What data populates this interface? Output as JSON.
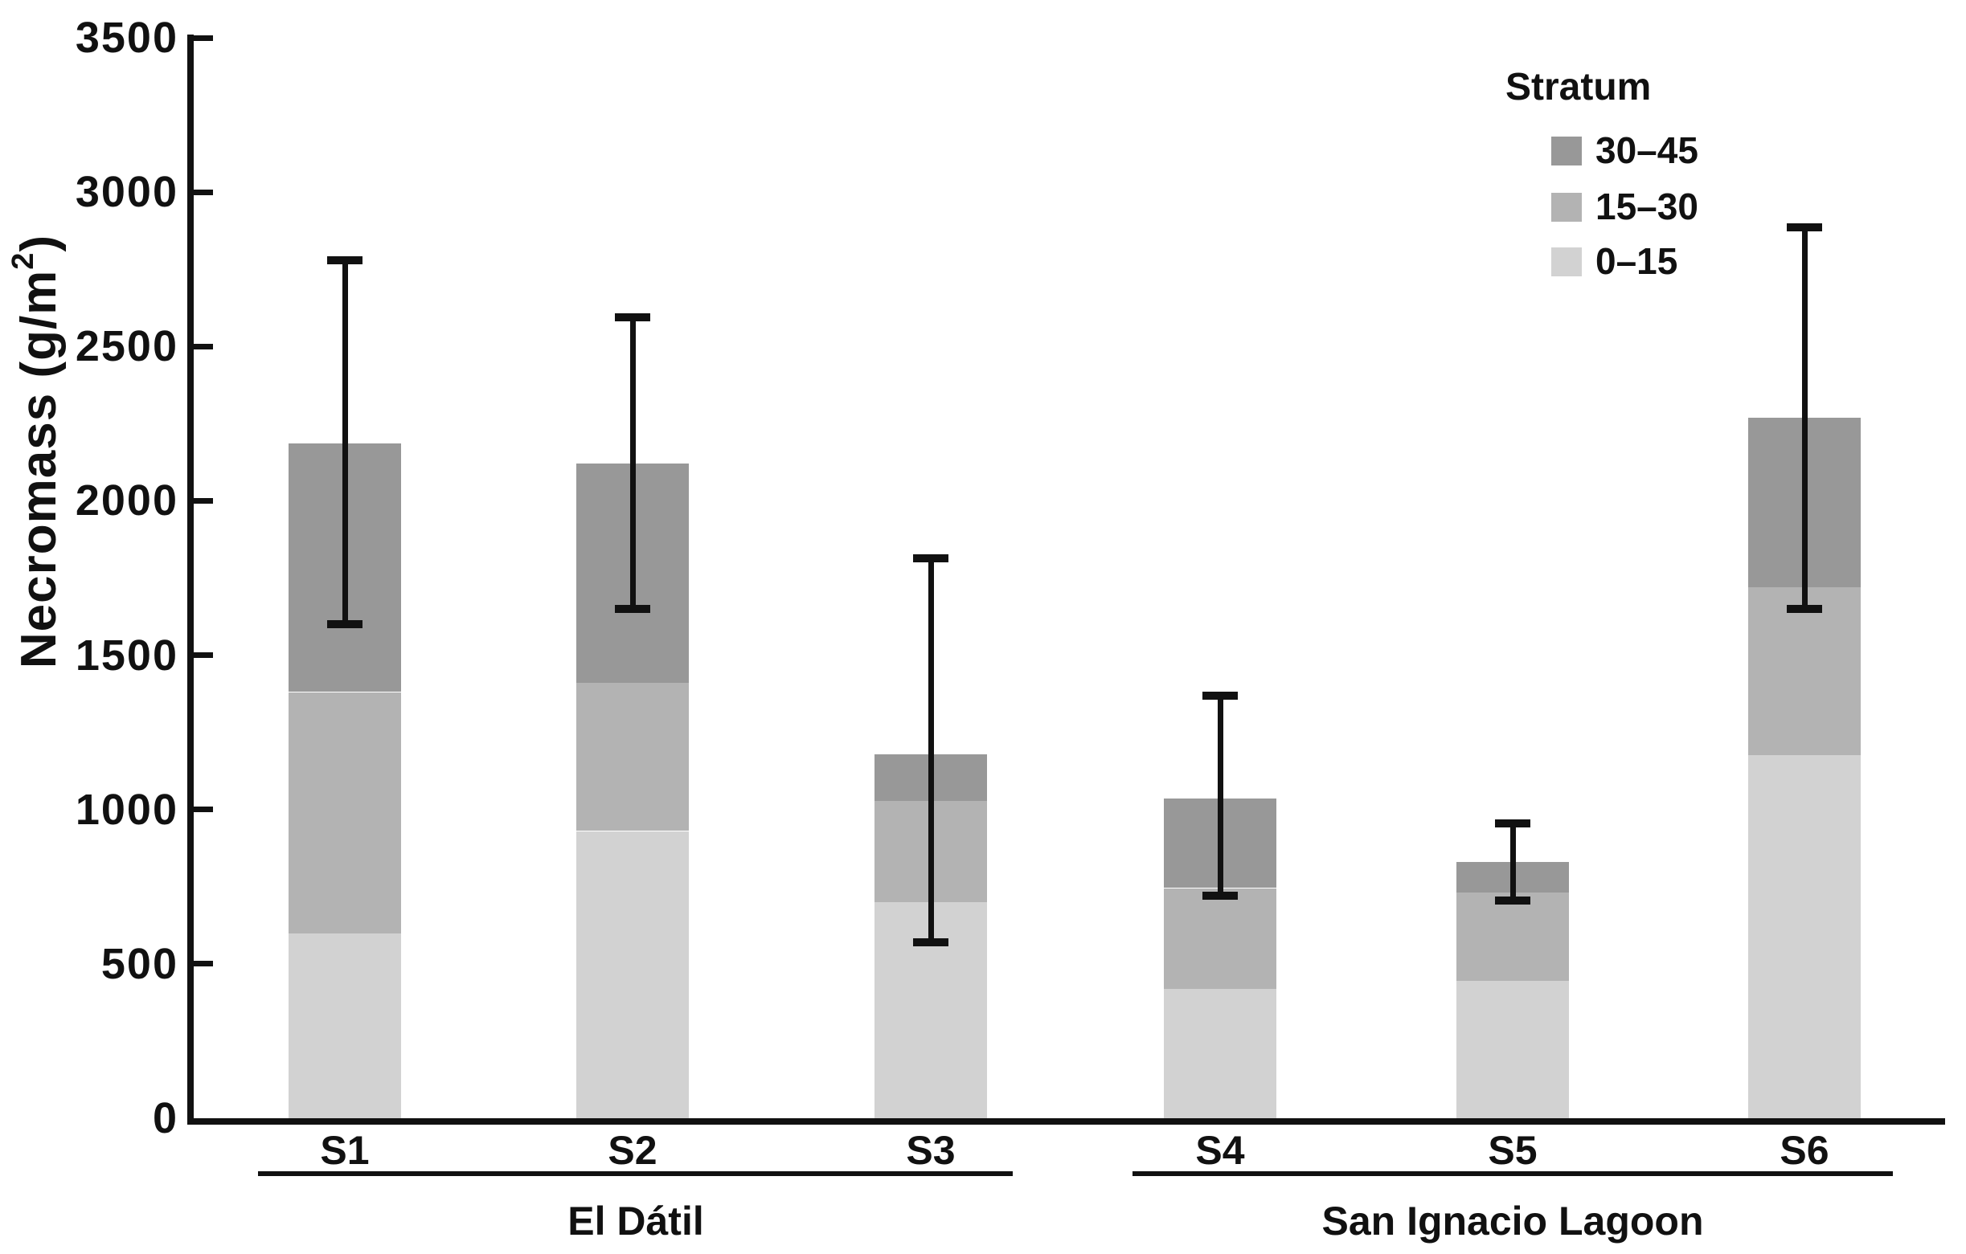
{
  "chart_data": {
    "type": "bar",
    "stacked": true,
    "title": "",
    "ylabel": "Necromass (g/m²)",
    "ylabel_parts": {
      "prefix": "Necromass (g/m",
      "sup": "2",
      "suffix": ")"
    },
    "xlabel": "",
    "ylim": [
      0,
      3500
    ],
    "yticks": [
      0,
      500,
      1000,
      1500,
      2000,
      2500,
      3000,
      3500
    ],
    "grid": false,
    "categories": [
      "S1",
      "S2",
      "S3",
      "S4",
      "S5",
      "S6"
    ],
    "groups": [
      {
        "label": "El Dátil",
        "members": [
          "S1",
          "S2",
          "S3"
        ]
      },
      {
        "label": "San Ignacio Lagoon",
        "members": [
          "S4",
          "S5",
          "S6"
        ]
      }
    ],
    "series": [
      {
        "name": "0–15",
        "color": "#d2d2d2",
        "values": [
          600,
          930,
          700,
          420,
          445,
          1175
        ]
      },
      {
        "name": "15–30",
        "color": "#b3b3b3",
        "values": [
          780,
          480,
          330,
          325,
          285,
          545
        ]
      },
      {
        "name": "30–45",
        "color": "#989898",
        "values": [
          805,
          710,
          150,
          290,
          100,
          550
        ]
      }
    ],
    "totals": [
      2185,
      2120,
      1180,
      1035,
      830,
      2270
    ],
    "error_bars": {
      "lower": [
        1600,
        1650,
        570,
        720,
        705,
        1650
      ],
      "upper": [
        2780,
        2595,
        1815,
        1370,
        955,
        2885
      ]
    },
    "legend": {
      "title": "Stratum",
      "position": "top-right",
      "entries": [
        {
          "label": "30–45",
          "color": "#989898"
        },
        {
          "label": "15–30",
          "color": "#b3b3b3"
        },
        {
          "label": "0–15",
          "color": "#d2d2d2"
        }
      ]
    },
    "axis_color": "#111111"
  }
}
